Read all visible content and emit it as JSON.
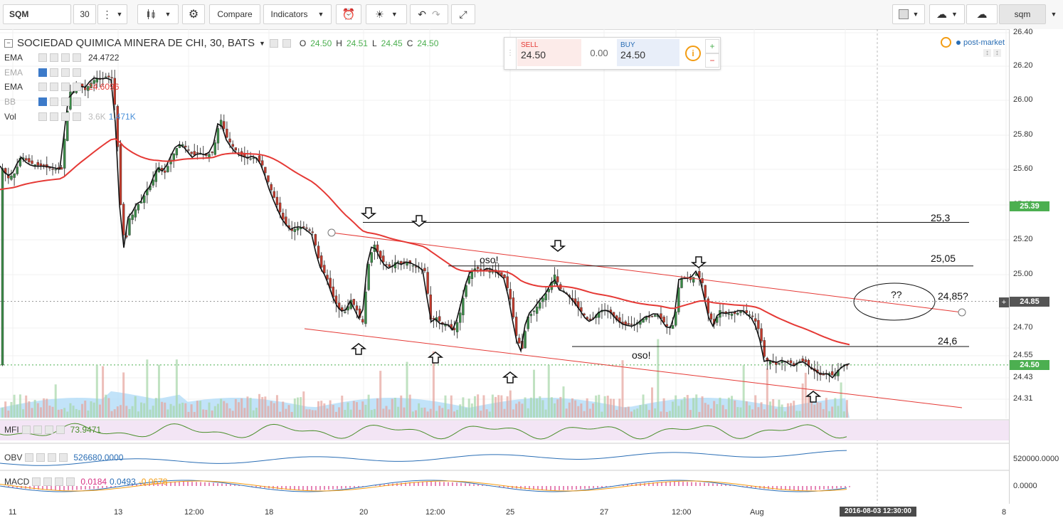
{
  "toolbar": {
    "symbol": "SQM",
    "interval": "30",
    "compare_label": "Compare",
    "indicators_label": "Indicators",
    "right_symbol": "sqm"
  },
  "header": {
    "title": "SOCIEDAD QUIMICA MINERA DE CHI, 30, BATS",
    "open": "24.50",
    "high": "24.51",
    "low": "24.45",
    "close": "24.50",
    "o_label": "O",
    "h_label": "H",
    "l_label": "L",
    "c_label": "C"
  },
  "trade": {
    "sell_label": "SELL",
    "sell_value": "24.50",
    "spread": "0.00",
    "buy_label": "BUY",
    "buy_value": "24.50",
    "info_icon": "i",
    "plus": "+",
    "minus": "−"
  },
  "status": {
    "post_market": "post-market"
  },
  "indicators": [
    {
      "name": "EMA",
      "value": "24.4722",
      "color": "#333333"
    },
    {
      "name": "EMA",
      "value": "",
      "color": "#333333"
    },
    {
      "name": "EMA",
      "value": "24.6096",
      "color": "#e53935"
    },
    {
      "name": "BB",
      "value": "",
      "color": "#333333"
    },
    {
      "name": "Vol",
      "value": "3.6K",
      "value2": "1.471K",
      "color": "#4a90d9"
    }
  ],
  "panes": {
    "mfi": {
      "label": "MFI",
      "value": "73.9471",
      "color": "#4a8f2a"
    },
    "obv": {
      "label": "OBV",
      "value": "526680.0000",
      "color": "#2a6eb5"
    },
    "macd": {
      "label": "MACD",
      "v1": "0.0184",
      "v2": "0.0493",
      "v3": "-0.0678"
    }
  },
  "annotations": {
    "oso1": "oso!",
    "oso2": "oso!",
    "l253": "25,3",
    "l2505": "25,05",
    "l2485": "24,85?",
    "l246": "24,6",
    "qq": "??"
  },
  "chart_data": {
    "type": "candlestick",
    "title": "SOCIEDAD QUIMICA MINERA DE CHI, 30, BATS",
    "y_range": [
      24.25,
      26.42
    ],
    "y_ticks": [
      "26.40",
      "26.20",
      "26.00",
      "25.80",
      "25.60",
      "25.40",
      "25.20",
      "25.00",
      "24.70",
      "24.55",
      "24.43",
      "24.31"
    ],
    "x_ticks": [
      "11",
      "13",
      "12:00",
      "18",
      "20",
      "12:00",
      "25",
      "27",
      "12:00",
      "Aug",
      "12:00",
      "8"
    ],
    "price_tags": [
      {
        "value": "25.39",
        "color": "#4caf50"
      },
      {
        "value": "24.85",
        "color": "#555555"
      },
      {
        "value": "24.50",
        "color": "#4caf50"
      }
    ],
    "horizontal_levels": [
      25.3,
      25.05,
      24.6
    ],
    "path_points": [
      [
        0,
        25.62
      ],
      [
        10,
        25.55
      ],
      [
        20,
        25.58
      ],
      [
        28,
        25.68
      ],
      [
        36,
        25.65
      ],
      [
        45,
        25.63
      ],
      [
        55,
        25.62
      ],
      [
        65,
        25.61
      ],
      [
        75,
        25.6
      ],
      [
        85,
        25.6
      ],
      [
        92,
        25.9
      ],
      [
        97,
        26.05
      ],
      [
        102,
        26.05
      ],
      [
        110,
        26.1
      ],
      [
        118,
        26.06
      ],
      [
        126,
        26.1
      ],
      [
        134,
        26.13
      ],
      [
        140,
        26.12
      ],
      [
        148,
        26.14
      ],
      [
        156,
        26.13
      ],
      [
        162,
        25.88
      ],
      [
        168,
        25.4
      ],
      [
        174,
        25.15
      ],
      [
        180,
        25.32
      ],
      [
        186,
        25.35
      ],
      [
        192,
        25.4
      ],
      [
        198,
        25.42
      ],
      [
        204,
        25.48
      ],
      [
        212,
        25.52
      ],
      [
        220,
        25.62
      ],
      [
        230,
        25.58
      ],
      [
        238,
        25.65
      ],
      [
        246,
        25.72
      ],
      [
        254,
        25.75
      ],
      [
        262,
        25.72
      ],
      [
        270,
        25.68
      ],
      [
        278,
        25.7
      ],
      [
        288,
        25.68
      ],
      [
        298,
        25.7
      ],
      [
        308,
        25.9
      ],
      [
        318,
        25.78
      ],
      [
        328,
        25.72
      ],
      [
        338,
        25.68
      ],
      [
        348,
        25.66
      ],
      [
        358,
        25.67
      ],
      [
        368,
        25.62
      ],
      [
        378,
        25.5
      ],
      [
        388,
        25.4
      ],
      [
        398,
        25.3
      ],
      [
        408,
        25.25
      ],
      [
        418,
        25.27
      ],
      [
        428,
        25.27
      ],
      [
        438,
        25.24
      ],
      [
        448,
        25.06
      ],
      [
        458,
        24.98
      ],
      [
        468,
        24.86
      ],
      [
        476,
        24.8
      ],
      [
        484,
        24.79
      ],
      [
        492,
        24.86
      ],
      [
        500,
        24.8
      ],
      [
        508,
        24.72
      ],
      [
        516,
        25.05
      ],
      [
        524,
        25.18
      ],
      [
        532,
        25.1
      ],
      [
        540,
        25.06
      ],
      [
        548,
        25.04
      ],
      [
        556,
        25.08
      ],
      [
        564,
        25.06
      ],
      [
        572,
        25.07
      ],
      [
        580,
        25.05
      ],
      [
        588,
        25.04
      ],
      [
        596,
        25.02
      ],
      [
        604,
        24.74
      ],
      [
        612,
        24.76
      ],
      [
        620,
        24.72
      ],
      [
        628,
        24.72
      ],
      [
        636,
        24.68
      ],
      [
        644,
        24.76
      ],
      [
        652,
        24.92
      ],
      [
        660,
        25.02
      ],
      [
        668,
        25.04
      ],
      [
        676,
        25.02
      ],
      [
        684,
        25.03
      ],
      [
        692,
        25.02
      ],
      [
        700,
        25.0
      ],
      [
        708,
        24.98
      ],
      [
        716,
        24.86
      ],
      [
        724,
        24.66
      ],
      [
        732,
        24.58
      ],
      [
        740,
        24.76
      ],
      [
        750,
        24.8
      ],
      [
        760,
        24.86
      ],
      [
        770,
        24.92
      ],
      [
        778,
        25.0
      ],
      [
        786,
        24.92
      ],
      [
        794,
        24.9
      ],
      [
        802,
        24.86
      ],
      [
        810,
        24.82
      ],
      [
        818,
        24.78
      ],
      [
        826,
        24.74
      ],
      [
        834,
        24.76
      ],
      [
        842,
        24.8
      ],
      [
        850,
        24.8
      ],
      [
        858,
        24.78
      ],
      [
        866,
        24.74
      ],
      [
        874,
        24.72
      ],
      [
        882,
        24.72
      ],
      [
        890,
        24.72
      ],
      [
        898,
        24.74
      ],
      [
        906,
        24.76
      ],
      [
        914,
        24.76
      ],
      [
        922,
        24.78
      ],
      [
        930,
        24.74
      ],
      [
        938,
        24.7
      ],
      [
        946,
        24.72
      ],
      [
        954,
        24.98
      ],
      [
        962,
        24.98
      ],
      [
        970,
        24.97
      ],
      [
        978,
        25.01
      ],
      [
        986,
        24.95
      ],
      [
        994,
        24.78
      ],
      [
        1002,
        24.72
      ],
      [
        1010,
        24.8
      ],
      [
        1018,
        24.78
      ],
      [
        1026,
        24.78
      ],
      [
        1034,
        24.78
      ],
      [
        1042,
        24.8
      ],
      [
        1050,
        24.78
      ],
      [
        1058,
        24.76
      ],
      [
        1066,
        24.68
      ],
      [
        1074,
        24.52
      ],
      [
        1082,
        24.52
      ],
      [
        1090,
        24.5
      ],
      [
        1098,
        24.52
      ],
      [
        1106,
        24.52
      ],
      [
        1114,
        24.5
      ],
      [
        1122,
        24.52
      ],
      [
        1130,
        24.52
      ],
      [
        1138,
        24.48
      ],
      [
        1146,
        24.46
      ],
      [
        1154,
        24.44
      ],
      [
        1162,
        24.46
      ],
      [
        1170,
        24.44
      ],
      [
        1178,
        24.48
      ],
      [
        1186,
        24.5
      ],
      [
        1194,
        24.5
      ]
    ]
  }
}
